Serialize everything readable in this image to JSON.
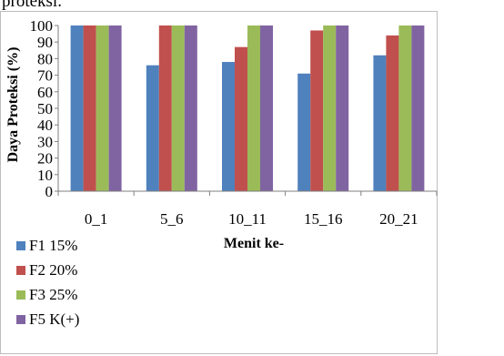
{
  "header_text": "proteksi.",
  "chart_data": {
    "type": "bar",
    "xlabel": "Menit ke-",
    "ylabel": "Daya Proteksi (%)",
    "ylim": [
      0,
      100
    ],
    "yticks": [
      0,
      10,
      20,
      30,
      40,
      50,
      60,
      70,
      80,
      90,
      100
    ],
    "categories": [
      "0_1",
      "5_6",
      "10_11",
      "15_16",
      "20_21"
    ],
    "legend_position": "bottom-left",
    "series": [
      {
        "name": "F1 15%",
        "color": "#4f81bd",
        "values": [
          100,
          76,
          78,
          71,
          82
        ]
      },
      {
        "name": "F2 20%",
        "color": "#c0504d",
        "values": [
          100,
          100,
          87,
          97,
          94
        ]
      },
      {
        "name": "F3 25%",
        "color": "#9bbb59",
        "values": [
          100,
          100,
          100,
          100,
          100
        ]
      },
      {
        "name": "F5 K(+)",
        "color": "#8064a2",
        "values": [
          100,
          100,
          100,
          100,
          100
        ]
      }
    ]
  }
}
